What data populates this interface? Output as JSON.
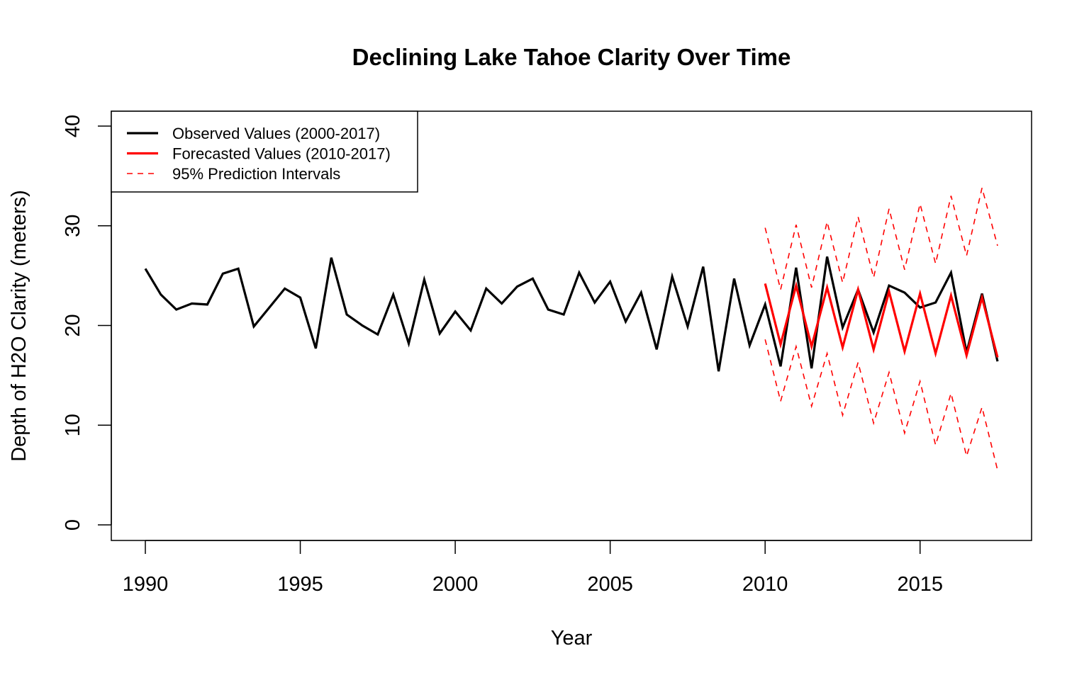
{
  "chart_data": {
    "type": "line",
    "title": "Declining Lake Tahoe Clarity Over Time",
    "xlabel": "Year",
    "ylabel": "Depth of H2O Clarity (meters)",
    "xlim": [
      1990,
      2017.5
    ],
    "ylim": [
      0,
      40
    ],
    "x_ticks": [
      1990,
      1995,
      2000,
      2005,
      2010,
      2015
    ],
    "y_ticks": [
      0,
      10,
      20,
      30,
      40
    ],
    "grid": false,
    "legend_position": "top-left",
    "legend": [
      {
        "label": "Observed Values (2000-2017)",
        "color": "#000000",
        "style": "solid"
      },
      {
        "label": "Forecasted Values (2010-2017)",
        "color": "#ff0000",
        "style": "solid"
      },
      {
        "label": "95% Prediction Intervals",
        "color": "#ff0000",
        "style": "dashed"
      }
    ],
    "series": [
      {
        "name": "Observed Values (2000-2017)",
        "color": "#000000",
        "style": "solid",
        "x": [
          1990,
          1990.5,
          1991,
          1991.5,
          1992,
          1992.5,
          1993,
          1993.5,
          1994,
          1994.5,
          1995,
          1995.5,
          1996,
          1996.5,
          1997,
          1997.5,
          1998,
          1998.5,
          1999,
          1999.5,
          2000,
          2000.5,
          2001,
          2001.5,
          2002,
          2002.5,
          2003,
          2003.5,
          2004,
          2004.5,
          2005,
          2005.5,
          2006,
          2006.5,
          2007,
          2007.5,
          2008,
          2008.5,
          2009,
          2009.5,
          2010,
          2010.5,
          2011,
          2011.5,
          2012,
          2012.5,
          2013,
          2013.5,
          2014,
          2014.5,
          2015,
          2015.5,
          2016,
          2016.5,
          2017,
          2017.5
        ],
        "y": [
          25.7,
          23.1,
          21.6,
          22.2,
          22.1,
          25.2,
          25.7,
          19.9,
          21.8,
          23.7,
          22.8,
          17.7,
          26.8,
          21.1,
          20.0,
          19.1,
          23.1,
          18.2,
          24.6,
          19.2,
          21.4,
          19.5,
          23.7,
          22.2,
          23.9,
          24.7,
          21.6,
          21.1,
          25.3,
          22.3,
          24.4,
          20.4,
          23.3,
          17.6,
          24.9,
          19.9,
          25.9,
          15.4,
          24.7,
          18.0,
          22.1,
          15.9,
          25.8,
          15.7,
          26.9,
          19.8,
          23.6,
          19.3,
          24.0,
          23.3,
          21.8,
          22.3,
          25.3,
          17.3,
          23.2,
          16.4
        ]
      },
      {
        "name": "Forecasted Values (2010-2017)",
        "color": "#ff0000",
        "style": "solid",
        "x": [
          2010,
          2010.5,
          2011,
          2011.5,
          2012,
          2012.5,
          2013,
          2013.5,
          2014,
          2014.5,
          2015,
          2015.5,
          2016,
          2016.5,
          2017,
          2017.5
        ],
        "y": [
          24.2,
          18.1,
          24.0,
          17.9,
          23.8,
          17.8,
          23.6,
          17.6,
          23.4,
          17.4,
          23.2,
          17.2,
          23.0,
          17.0,
          22.8,
          16.8
        ]
      },
      {
        "name": "95% Prediction Intervals",
        "color": "#ff0000",
        "style": "dashed",
        "x": [
          2010,
          2010.5,
          2011,
          2011.5,
          2012,
          2012.5,
          2013,
          2013.5,
          2014,
          2014.5,
          2015,
          2015.5,
          2016,
          2016.5,
          2017,
          2017.5
        ],
        "y": [
          29.8,
          23.6,
          30.1,
          23.8,
          30.4,
          24.3,
          30.9,
          24.8,
          31.7,
          25.6,
          32.2,
          26.2,
          33.0,
          27.0,
          33.8,
          28.0
        ]
      },
      {
        "name": "95% Prediction Intervals",
        "color": "#ff0000",
        "style": "dashed",
        "x": [
          2010,
          2010.5,
          2011,
          2011.5,
          2012,
          2012.5,
          2013,
          2013.5,
          2014,
          2014.5,
          2015,
          2015.5,
          2016,
          2016.5,
          2017,
          2017.5
        ],
        "y": [
          18.6,
          12.4,
          17.9,
          11.9,
          17.2,
          11.0,
          16.3,
          10.2,
          15.3,
          9.2,
          14.4,
          8.0,
          13.2,
          6.9,
          11.8,
          5.5
        ]
      }
    ]
  }
}
